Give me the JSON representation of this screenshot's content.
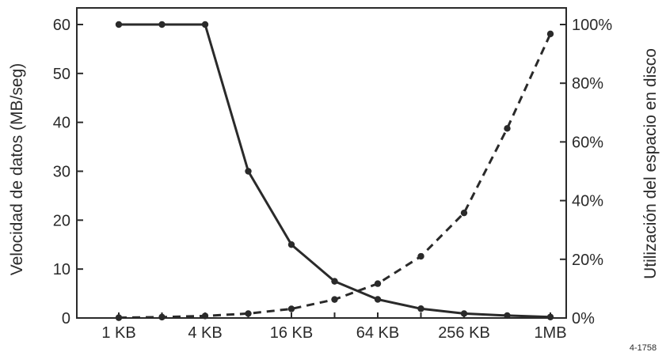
{
  "chart_data": {
    "type": "line",
    "categories": [
      "1 KB",
      "2 KB",
      "4 KB",
      "8 KB",
      "16 KB",
      "32 KB",
      "64 KB",
      "128 KB",
      "256 KB",
      "512 KB",
      "1MB"
    ],
    "x_tick_labels": [
      "1 KB",
      "4 KB",
      "16 KB",
      "64 KB",
      "256 KB",
      "1MB"
    ],
    "ylabel": "Velocidad de datos (MB/seg)",
    "ylim": [
      0,
      60
    ],
    "y_ticks": [
      "0",
      "10",
      "20",
      "30",
      "40",
      "50",
      "60"
    ],
    "y2label": "Utilización del espacio en disco",
    "y2lim": [
      0,
      100
    ],
    "y2_ticks": [
      "0%",
      "20%",
      "40%",
      "60%",
      "80%",
      "100%"
    ],
    "grid": false,
    "legend": "none",
    "corner_note": "4-1758",
    "series": [
      {
        "axis": "left",
        "line_style": "solid",
        "values": [
          60,
          60,
          60,
          30,
          15,
          7.5,
          3.8,
          1.9,
          0.9,
          0.5,
          0.2
        ]
      },
      {
        "axis": "right",
        "line_style": "dashed",
        "values": [
          0.1,
          0.3,
          0.7,
          1.5,
          3.1,
          6.3,
          11.7,
          21,
          35.8,
          64.6,
          96.8
        ]
      }
    ],
    "colors": {
      "ink": "#2a2a2a",
      "background": "#ffffff"
    }
  }
}
